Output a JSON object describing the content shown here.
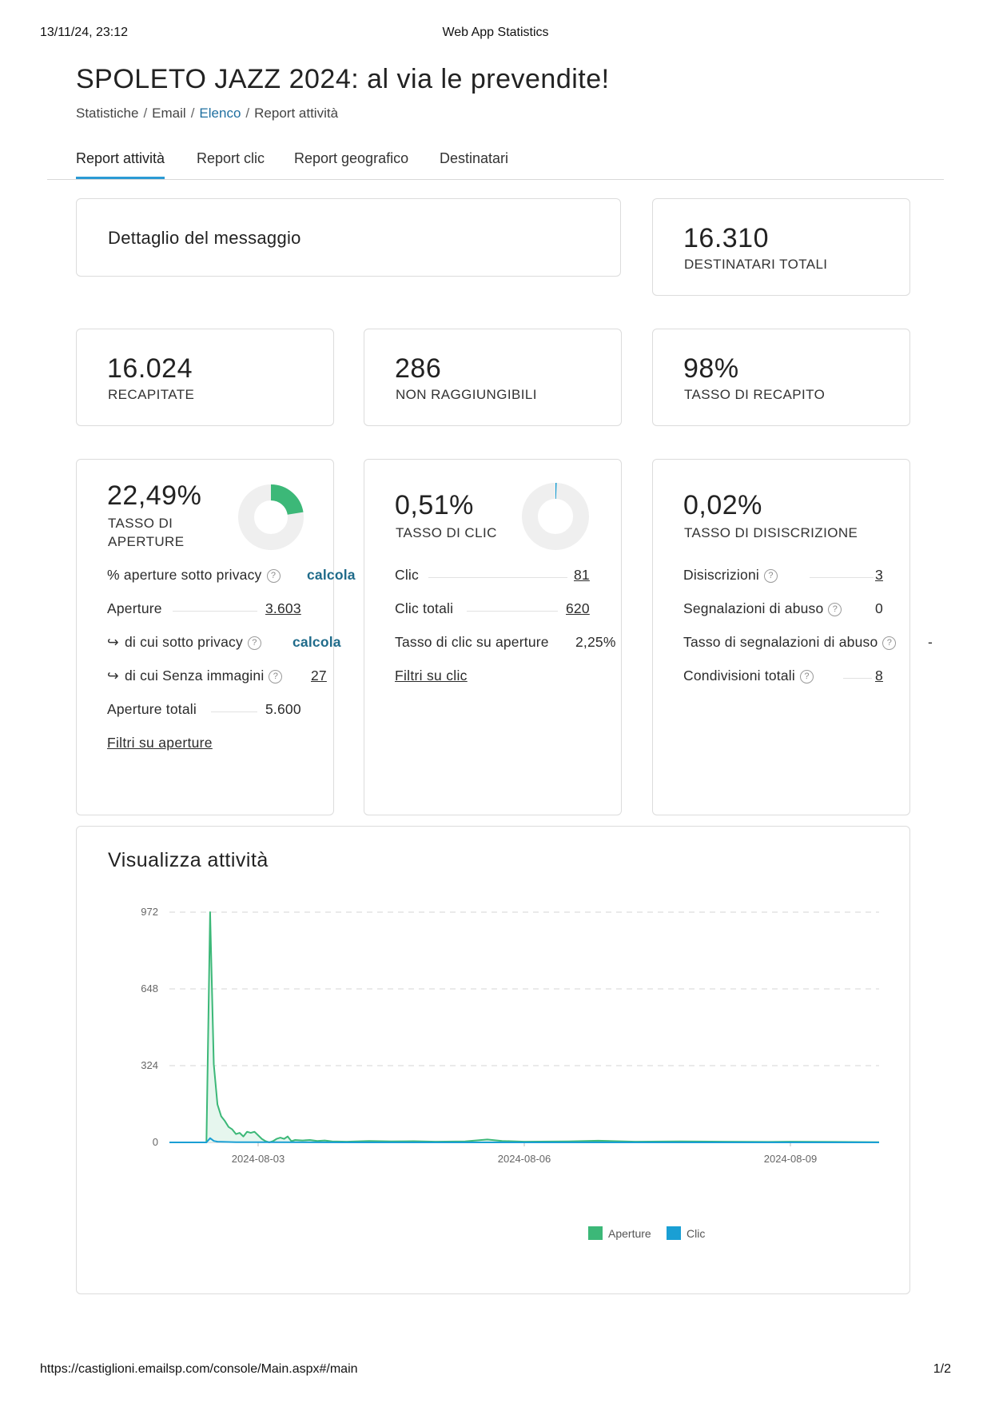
{
  "print": {
    "datetime": "13/11/24, 23:12",
    "title": "Web App Statistics",
    "url": "https://castiglioni.emailsp.com/console/Main.aspx#/main",
    "page": "1/2"
  },
  "page_title": "SPOLETO JAZZ 2024: al via le prevendite!",
  "breadcrumb": [
    "Statistiche",
    "Email",
    "Elenco",
    "Report attività"
  ],
  "tabs": [
    "Report attività",
    "Report clic",
    "Report geografico",
    "Destinatari"
  ],
  "message_detail": {
    "title": "Dettaglio del messaggio"
  },
  "kpis": {
    "total_recipients": {
      "value": "16.310",
      "label": "DESTINATARI TOTALI"
    },
    "delivered": {
      "value": "16.024",
      "label": "RECAPITATE"
    },
    "unreachable": {
      "value": "286",
      "label": "NON RAGGIUNGIBILI"
    },
    "delivery_rate": {
      "value": "98%",
      "label": "TASSO DI RECAPITO"
    }
  },
  "opens": {
    "rate": "22,49%",
    "rate_fraction": 0.2249,
    "label_line1": "TASSO DI",
    "label_line2": "APERTURE",
    "accent": "#3cb878",
    "rows": {
      "privacy_pct": {
        "label": "% aperture sotto privacy",
        "value": "calcola"
      },
      "opens": {
        "label": "Aperture",
        "value": "3.603"
      },
      "privacy": {
        "label": "di cui sotto privacy",
        "value": "calcola"
      },
      "no_images": {
        "label": "di cui Senza immagini",
        "value": "27"
      },
      "total": {
        "label": "Aperture totali",
        "value": "5.600"
      }
    },
    "filter_link": "Filtri su aperture"
  },
  "clicks": {
    "rate": "0,51%",
    "rate_fraction": 0.0051,
    "label": "TASSO DI CLIC",
    "accent": "#1a9fd4",
    "rows": {
      "clicks": {
        "label": "Clic",
        "value": "81"
      },
      "total": {
        "label": "Clic totali",
        "value": "620"
      },
      "ctor": {
        "label": "Tasso di clic su aperture",
        "value": "2,25%"
      }
    },
    "filter_link": "Filtri su clic"
  },
  "unsubscribes": {
    "rate": "0,02%",
    "label": "TASSO DI DISISCRIZIONE",
    "rows": {
      "unsubs": {
        "label": "Disiscrizioni",
        "value": "3"
      },
      "abuse": {
        "label": "Segnalazioni di abuso",
        "value": "0"
      },
      "abuse_rate": {
        "label": "Tasso di segnalazioni di abuso",
        "value": "-"
      },
      "shares": {
        "label": "Condivisioni totali",
        "value": "8"
      }
    }
  },
  "activity": {
    "title": "Visualizza attività"
  },
  "chart_data": {
    "type": "line",
    "title": "Visualizza attività",
    "y_ticks": [
      "972",
      "648",
      "324",
      "0"
    ],
    "y_tick_values": [
      972,
      648,
      324,
      0
    ],
    "ylim": [
      0,
      972
    ],
    "x_ticks": [
      "2024-08-03",
      "2024-08-06",
      "2024-08-09"
    ],
    "grid": true,
    "legend_position": "bottom-center",
    "x_start": "2024-08-02T00:00",
    "x_end": "2024-08-10T00:00",
    "series": [
      {
        "name": "Aperture",
        "color": "#3cb878",
        "fill": "#e6f6ee",
        "points": [
          [
            "2024-08-02T00:00",
            0
          ],
          [
            "2024-08-02T08:00",
            0
          ],
          [
            "2024-08-02T10:00",
            0
          ],
          [
            "2024-08-02T11:00",
            972
          ],
          [
            "2024-08-02T12:00",
            330
          ],
          [
            "2024-08-02T13:00",
            160
          ],
          [
            "2024-08-02T14:00",
            110
          ],
          [
            "2024-08-02T15:00",
            90
          ],
          [
            "2024-08-02T16:00",
            65
          ],
          [
            "2024-08-02T17:00",
            55
          ],
          [
            "2024-08-02T18:00",
            35
          ],
          [
            "2024-08-02T19:00",
            40
          ],
          [
            "2024-08-02T20:00",
            25
          ],
          [
            "2024-08-02T21:00",
            45
          ],
          [
            "2024-08-02T22:00",
            40
          ],
          [
            "2024-08-02T23:00",
            45
          ],
          [
            "2024-08-03T00:00",
            30
          ],
          [
            "2024-08-03T01:00",
            15
          ],
          [
            "2024-08-03T02:00",
            5
          ],
          [
            "2024-08-03T03:00",
            0
          ],
          [
            "2024-08-03T04:00",
            5
          ],
          [
            "2024-08-03T05:00",
            15
          ],
          [
            "2024-08-03T06:00",
            20
          ],
          [
            "2024-08-03T07:00",
            15
          ],
          [
            "2024-08-03T08:00",
            25
          ],
          [
            "2024-08-03T09:00",
            5
          ],
          [
            "2024-08-03T10:00",
            10
          ],
          [
            "2024-08-03T12:00",
            8
          ],
          [
            "2024-08-03T14:00",
            10
          ],
          [
            "2024-08-03T16:00",
            6
          ],
          [
            "2024-08-03T18:00",
            8
          ],
          [
            "2024-08-03T20:00",
            4
          ],
          [
            "2024-08-04T00:00",
            3
          ],
          [
            "2024-08-04T06:00",
            6
          ],
          [
            "2024-08-04T12:00",
            4
          ],
          [
            "2024-08-04T18:00",
            5
          ],
          [
            "2024-08-05T00:00",
            3
          ],
          [
            "2024-08-05T08:00",
            4
          ],
          [
            "2024-08-05T14:00",
            12
          ],
          [
            "2024-08-05T18:00",
            6
          ],
          [
            "2024-08-06T00:00",
            3
          ],
          [
            "2024-08-06T12:00",
            4
          ],
          [
            "2024-08-06T20:00",
            7
          ],
          [
            "2024-08-07T06:00",
            3
          ],
          [
            "2024-08-07T18:00",
            4
          ],
          [
            "2024-08-08T06:00",
            3
          ],
          [
            "2024-08-08T18:00",
            2
          ],
          [
            "2024-08-09T00:00",
            3
          ],
          [
            "2024-08-09T12:00",
            2
          ],
          [
            "2024-08-10T00:00",
            1
          ]
        ]
      },
      {
        "name": "Clic",
        "color": "#1a9fd4",
        "fill": "none",
        "points": [
          [
            "2024-08-02T00:00",
            0
          ],
          [
            "2024-08-02T10:00",
            0
          ],
          [
            "2024-08-02T11:00",
            18
          ],
          [
            "2024-08-02T12:00",
            6
          ],
          [
            "2024-08-02T13:00",
            3
          ],
          [
            "2024-08-02T15:00",
            2
          ],
          [
            "2024-08-02T18:00",
            1
          ],
          [
            "2024-08-03T00:00",
            1
          ],
          [
            "2024-08-04T00:00",
            0
          ],
          [
            "2024-08-10T00:00",
            0
          ]
        ]
      }
    ]
  }
}
